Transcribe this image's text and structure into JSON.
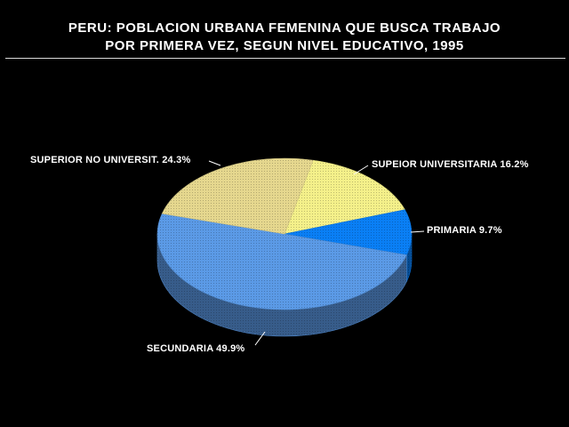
{
  "chart_data": {
    "type": "pie",
    "title_line1": "PERU: POBLACION URBANA FEMENINA QUE BUSCA TRABAJO",
    "title_line2": "POR PRIMERA VEZ, SEGUN NIVEL EDUCATIVO, 1995",
    "three_d": true,
    "slices": [
      {
        "name": "SUPEIOR UNIVERSITARIA",
        "value": 16.2,
        "label": "SUPEIOR UNIVERSITARIA  16.2%",
        "color": "#f4f08a"
      },
      {
        "name": "PRIMARIA",
        "value": 9.7,
        "label": "PRIMARIA  9.7%",
        "color": "#0a7ff5"
      },
      {
        "name": "SECUNDARIA",
        "value": 49.9,
        "label": "SECUNDARIA  49.9%",
        "color": "#5b9ae6"
      },
      {
        "name": "SUPERIOR NO UNIVERSIT.",
        "value": 24.3,
        "label": "SUPERIOR NO UNIVERSIT.  24.3%",
        "color": "#e5d78e"
      }
    ]
  }
}
